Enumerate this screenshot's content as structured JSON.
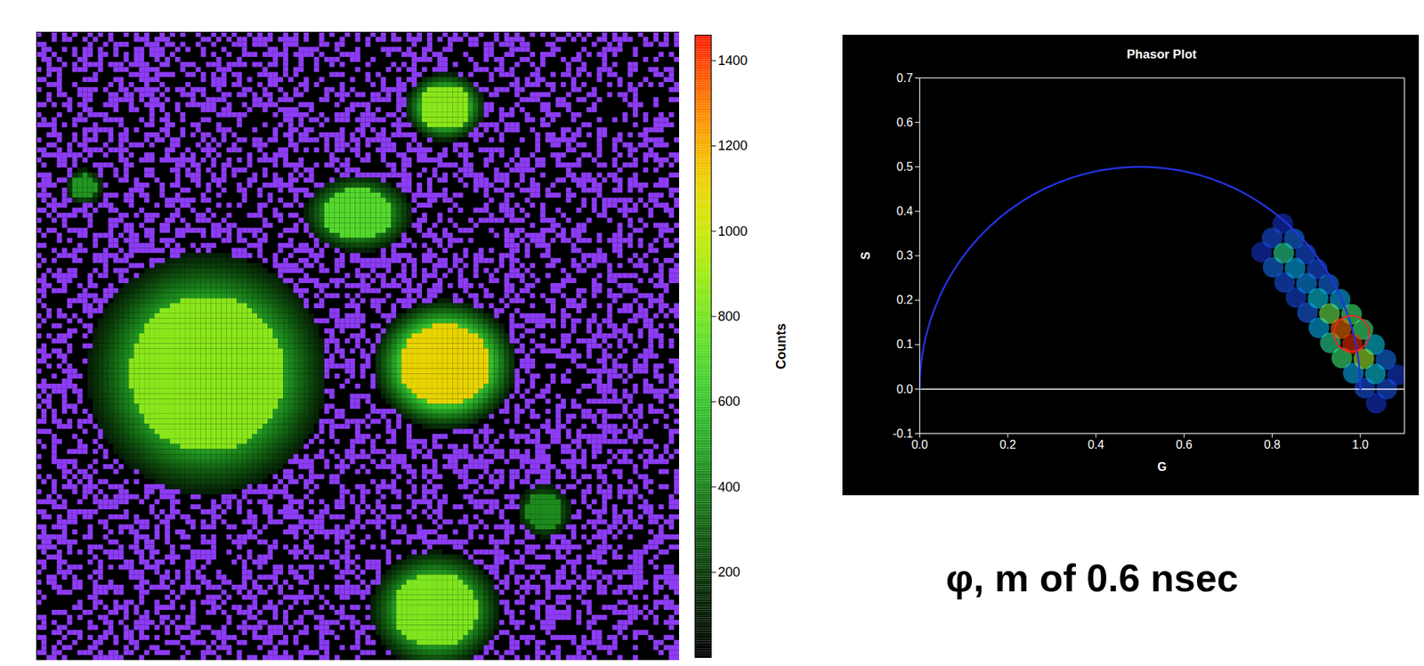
{
  "chart_data": [
    {
      "type": "image",
      "xlim": [
        0,
        100
      ],
      "ylim": [
        0,
        100
      ],
      "tick_labels": false,
      "background_counts": 100,
      "blobs": [
        {
          "x": 26.6,
          "y": 54.4,
          "rx": 12,
          "ry": 12.4,
          "counts": 850
        },
        {
          "x": 63.6,
          "y": 53,
          "rx": 7,
          "ry": 6.5,
          "counts": 1100
        },
        {
          "x": 62.1,
          "y": 92,
          "rx": 6.5,
          "ry": 6,
          "counts": 820
        },
        {
          "x": 50.1,
          "y": 29,
          "rx": 5.5,
          "ry": 4,
          "counts": 700
        },
        {
          "x": 63.6,
          "y": 12,
          "rx": 4,
          "ry": 3.5,
          "counts": 850
        },
        {
          "x": 7.5,
          "y": 24.7,
          "rx": 2,
          "ry": 2,
          "counts": 450
        },
        {
          "x": 79,
          "y": 76.3,
          "rx": 3,
          "ry": 3,
          "counts": 420
        }
      ],
      "colorbar": {
        "label": "Counts",
        "range": [
          0,
          1460
        ],
        "ticks": [
          200,
          400,
          600,
          800,
          1000,
          1200,
          1400
        ]
      }
    },
    {
      "type": "scatter",
      "title": "Phasor Plot",
      "x_label": "G",
      "y_label": "S",
      "xlim": [
        0,
        1.1
      ],
      "xticks": [
        {
          "value": 0,
          "label": "0.0"
        },
        0.2,
        0.4,
        0.6,
        0.8,
        {
          "value": 1,
          "label": "1.0"
        }
      ],
      "ylim": [
        -0.1,
        0.7
      ],
      "yticks": [
        -0.1,
        {
          "value": 0,
          "label": "0.0"
        },
        0.1,
        0.2,
        0.3,
        0.4,
        0.5,
        0.6,
        0.7
      ],
      "grid": false,
      "density_range": [
        0,
        1
      ],
      "points": [
        {
          "g": 0.776,
          "s": 0.308,
          "density": 0.08
        },
        {
          "g": 0.824,
          "s": 0.372,
          "density": 0.08
        },
        {
          "g": 0.802,
          "s": 0.274,
          "density": 0.2
        },
        {
          "g": 0.85,
          "s": 0.338,
          "density": 0.2
        },
        {
          "g": 0.828,
          "s": 0.24,
          "density": 0.15
        },
        {
          "g": 0.876,
          "s": 0.304,
          "density": 0.15
        },
        {
          "g": 0.854,
          "s": 0.206,
          "density": 0.12
        },
        {
          "g": 0.902,
          "s": 0.27,
          "density": 0.15
        },
        {
          "g": 0.88,
          "s": 0.172,
          "density": 0.18
        },
        {
          "g": 0.928,
          "s": 0.236,
          "density": 0.2
        },
        {
          "g": 0.906,
          "s": 0.138,
          "density": 0.3
        },
        {
          "g": 0.954,
          "s": 0.202,
          "density": 0.3
        },
        {
          "g": 0.932,
          "s": 0.104,
          "density": 0.45
        },
        {
          "g": 0.98,
          "s": 0.168,
          "density": 0.5
        },
        {
          "g": 0.958,
          "s": 0.07,
          "density": 0.5
        },
        {
          "g": 1.006,
          "s": 0.134,
          "density": 0.5
        },
        {
          "g": 0.984,
          "s": 0.036,
          "density": 0.3
        },
        {
          "g": 1.032,
          "s": 0.1,
          "density": 0.35
        },
        {
          "g": 1.01,
          "s": 0.002,
          "density": 0.15
        },
        {
          "g": 1.058,
          "s": 0.066,
          "density": 0.2
        },
        {
          "g": 1.036,
          "s": -0.032,
          "density": 0.08
        },
        {
          "g": 1.084,
          "s": 0.032,
          "density": 0.1
        },
        {
          "g": 0.8,
          "s": 0.34,
          "density": 0.15
        },
        {
          "g": 0.826,
          "s": 0.306,
          "density": 0.45
        },
        {
          "g": 0.852,
          "s": 0.272,
          "density": 0.3
        },
        {
          "g": 0.878,
          "s": 0.238,
          "density": 0.25
        },
        {
          "g": 0.904,
          "s": 0.204,
          "density": 0.35
        },
        {
          "g": 0.93,
          "s": 0.17,
          "density": 0.55
        },
        {
          "g": 0.956,
          "s": 0.136,
          "density": 0.85
        },
        {
          "g": 1.008,
          "s": 0.068,
          "density": 0.6
        },
        {
          "g": 1.034,
          "s": 0.034,
          "density": 0.35
        },
        {
          "g": 1.06,
          "s": 0.0,
          "density": 0.15
        },
        {
          "g": 0.982,
          "s": 0.102,
          "density": 0.95
        }
      ],
      "semicircle": {
        "center": [
          0.5,
          0
        ],
        "radius": 0.5,
        "color": "#2233dd"
      },
      "cursor": {
        "center": [
          0.98,
          0.125
        ],
        "radius": 0.04,
        "color": "#ff2020"
      },
      "annotations": [
        "φ, m of 0.6 nsec"
      ]
    }
  ]
}
